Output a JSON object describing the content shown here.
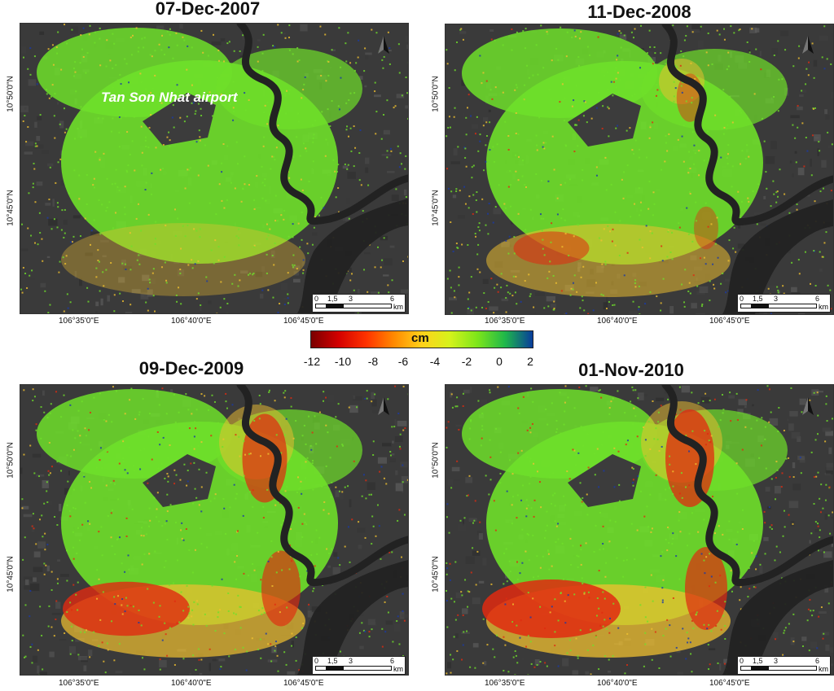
{
  "panels": [
    {
      "id": "p1",
      "date": "07-Dec-2007"
    },
    {
      "id": "p2",
      "date": "11-Dec-2008"
    },
    {
      "id": "p3",
      "date": "09-Dec-2009"
    },
    {
      "id": "p4",
      "date": "01-Nov-2010"
    }
  ],
  "airport_label": "Tan Son Nhat airport",
  "lat_labels": [
    "10°50'0\"N",
    "10°45'0\"N"
  ],
  "lon_labels": [
    "106°35'0\"E",
    "106°40'0\"E",
    "106°45'0\"E"
  ],
  "scalebar": {
    "ticks": [
      "0",
      "1,5",
      "3",
      "6"
    ],
    "unit": "km"
  },
  "colorbar": {
    "unit": "cm",
    "ticks": [
      "-12",
      "-10",
      "-8",
      "-6",
      "-4",
      "-2",
      "0",
      "2"
    ],
    "colors": [
      "#7a0000",
      "#d40000",
      "#ff3300",
      "#ff8a00",
      "#ffd21a",
      "#d6f21a",
      "#7de61a",
      "#1fb84a",
      "#083c9c"
    ]
  },
  "colors": {
    "background_sar": "#3a3a3a",
    "stable": "#6fe02a",
    "moderate": "#f0c030",
    "severe": "#e02a10",
    "uplift": "#1a3aa8",
    "river": "#222222"
  }
}
